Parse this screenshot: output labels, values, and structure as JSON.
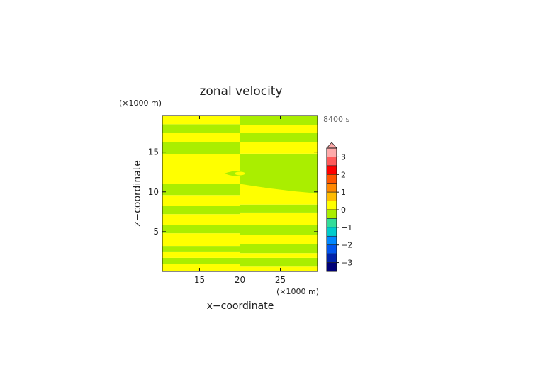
{
  "chart_data": {
    "type": "heatmap",
    "title": "zonal velocity",
    "time_label": "8400 s",
    "xlabel": "x−coordinate",
    "ylabel": "z−coordinate",
    "x_unit": "(×1000 m)",
    "y_unit": "(×1000 m)",
    "xlim": [
      10.4,
      29.6
    ],
    "ylim": [
      0,
      19.6
    ],
    "x_ticks": [
      15,
      20,
      25
    ],
    "y_ticks": [
      5,
      10,
      15
    ],
    "x_tick_labels": [
      "15",
      "20",
      "25"
    ],
    "y_tick_labels": [
      "5",
      "10",
      "15"
    ],
    "colorbar": {
      "ticks": [
        3,
        2,
        1,
        0,
        -1,
        -2,
        -3
      ],
      "tick_labels": [
        "3",
        "2",
        "1",
        "0",
        "−1",
        "−2",
        "−3"
      ],
      "range": [
        -3.5,
        3.5
      ],
      "extend": "max",
      "colors": [
        "#ffaaaa",
        "#ff5a5a",
        "#ff0000",
        "#ff5500",
        "#ff8800",
        "#ffbb00",
        "#ffff00",
        "#aaee00",
        "#33dd99",
        "#00cccc",
        "#0088ff",
        "#0055ee",
        "#0022aa",
        "#000077"
      ]
    },
    "colors": {
      "positive": "#ffff00",
      "negative": "#aaee00"
    },
    "bands": [
      {
        "z0": 0.0,
        "z1": 0.9,
        "value": 0.2
      },
      {
        "z0": 0.9,
        "z1": 1.7,
        "value": -0.2
      },
      {
        "z0": 1.7,
        "z1": 2.5,
        "value": 0.2
      },
      {
        "z0": 2.5,
        "z1": 3.2,
        "value": -0.2
      },
      {
        "z0": 3.2,
        "z1": 4.8,
        "value": 0.2
      },
      {
        "z0": 4.8,
        "z1": 5.8,
        "value": -0.2
      },
      {
        "z0": 5.8,
        "z1": 7.2,
        "value": 0.2
      },
      {
        "z0": 7.2,
        "z1": 8.2,
        "value": -0.2
      },
      {
        "z0": 8.2,
        "z1": 9.6,
        "value": 0.2
      },
      {
        "z0": 9.6,
        "z1": 11.0,
        "value": -0.2
      },
      {
        "z0": 11.0,
        "z1": 14.7,
        "value": 0.2
      },
      {
        "z0": 14.7,
        "z1": 16.3,
        "value": -0.2
      },
      {
        "z0": 16.3,
        "z1": 17.4,
        "value": 0.2
      },
      {
        "z0": 17.4,
        "z1": 18.5,
        "value": -0.2
      },
      {
        "z0": 18.5,
        "z1": 19.6,
        "value": 0.2
      }
    ],
    "right_half_bands": [
      {
        "z0": 0.0,
        "z1": 0.6,
        "value": 0.2
      },
      {
        "z0": 0.6,
        "z1": 1.7,
        "value": -0.2
      },
      {
        "z0": 1.7,
        "z1": 2.3,
        "value": 0.2
      },
      {
        "z0": 2.3,
        "z1": 3.4,
        "value": -0.2
      },
      {
        "z0": 3.4,
        "z1": 4.6,
        "value": 0.2
      },
      {
        "z0": 4.6,
        "z1": 5.8,
        "value": -0.2
      },
      {
        "z0": 5.8,
        "z1": 7.4,
        "value": 0.2
      },
      {
        "z0": 7.4,
        "z1": 8.4,
        "value": -0.2
      },
      {
        "z0": 8.4,
        "z1": 9.8,
        "value": 0.2
      },
      {
        "z0": 9.8,
        "z1": 14.8,
        "value": -0.2
      },
      {
        "z0": 14.8,
        "z1": 16.3,
        "value": 0.2
      },
      {
        "z0": 16.3,
        "z1": 17.4,
        "value": -0.2
      },
      {
        "z0": 17.4,
        "z1": 18.4,
        "value": 0.2
      },
      {
        "z0": 18.4,
        "z1": 19.6,
        "value": -0.2
      }
    ],
    "center_lens": {
      "x": 20,
      "z": 12.3,
      "value": -0.2
    }
  }
}
